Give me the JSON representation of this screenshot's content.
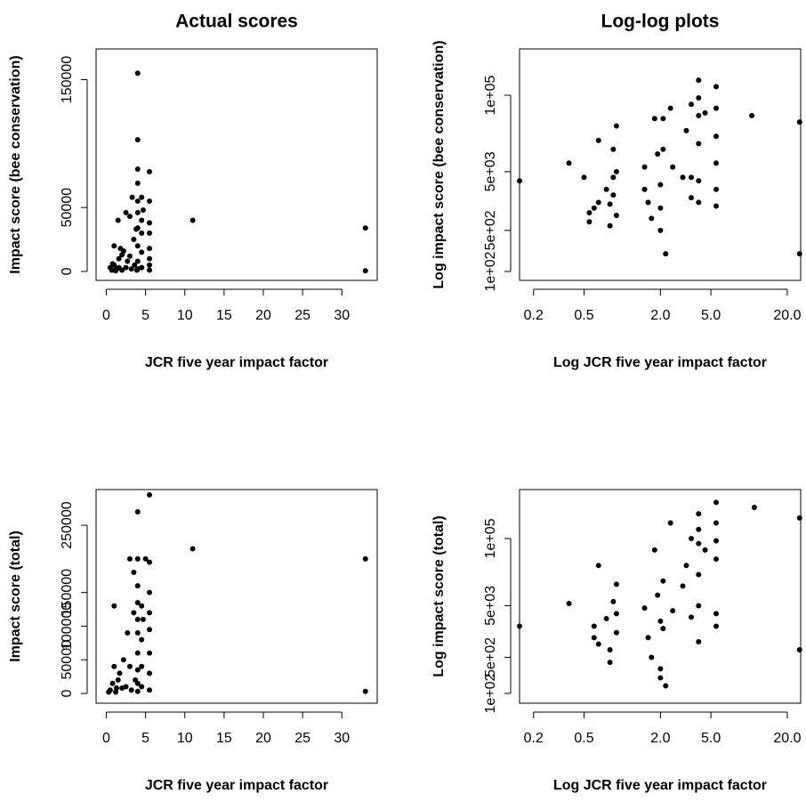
{
  "chart_data": [
    {
      "type": "scatter",
      "title": "Actual scores",
      "x_label": "JCR five year impact factor",
      "y_label": "Impact score (bee conservation)",
      "color": "#000000",
      "xlim": [
        -1.3,
        34.5
      ],
      "ylim": [
        -7000,
        174000
      ],
      "xticks": [
        0,
        5,
        10,
        15,
        20,
        25,
        30
      ],
      "yticks": [
        0,
        50000,
        150000
      ],
      "x": [
        0.5,
        0.7,
        0.8,
        1,
        1.2,
        1.3,
        1.5,
        1.6,
        1.8,
        2,
        2.2,
        2.5,
        2.5,
        2.7,
        3,
        3,
        3.2,
        3.3,
        3.5,
        3.6,
        3.8,
        3.9,
        4,
        4,
        4,
        4,
        4,
        4,
        4,
        4,
        4,
        4,
        4.5,
        4.5,
        4.5,
        4.5,
        4.5,
        4.7,
        5.5,
        5.5,
        5.5,
        5.5,
        5.5,
        5.5,
        5.5,
        5.5,
        11,
        33,
        33,
        2,
        1,
        1.6
      ],
      "y": [
        3000,
        1000,
        6000,
        20000,
        500,
        2000,
        40000,
        10000,
        18000,
        1000,
        16000,
        46000,
        3000,
        8000,
        43000,
        12000,
        2000,
        58000,
        25000,
        5000,
        33000,
        1000,
        155000,
        103000,
        80000,
        69000,
        55000,
        46000,
        34000,
        20000,
        8000,
        2000,
        58000,
        40000,
        30000,
        15000,
        3000,
        48000,
        78000,
        55000,
        38000,
        30000,
        18000,
        10000,
        5000,
        1000,
        40000,
        34000,
        500,
        13000,
        5000,
        3000
      ]
    },
    {
      "type": "scatter",
      "title": "Log-log plots",
      "x_label": "Log JCR five year impact factor",
      "y_label": "Log impact score (bee conservation)",
      "color": "#000000",
      "log_x": true,
      "log_y": true,
      "xlim": [
        0.155,
        25.5
      ],
      "ylim": [
        70.5,
        614000
      ],
      "xticks": [
        0.2,
        0.5,
        {
          "value": 2,
          "label": "2.0"
        },
        {
          "value": 5,
          "label": "5.0"
        },
        {
          "value": 20,
          "label": "20.0"
        }
      ],
      "yticks": [
        {
          "value": 100,
          "label": "1e+02"
        },
        {
          "value": 500,
          "label": "5e+02"
        },
        {
          "value": 5000,
          "label": "5e+03"
        },
        {
          "value": 100000,
          "label": "1e+05"
        }
      ],
      "x": [
        0.155,
        0.38,
        0.5,
        0.55,
        0.55,
        0.6,
        0.65,
        0.65,
        0.75,
        0.8,
        0.8,
        0.85,
        0.85,
        0.85,
        0.9,
        0.9,
        0.9,
        1.5,
        1.5,
        1.6,
        1.7,
        1.8,
        1.9,
        2,
        2,
        2,
        2.1,
        2.1,
        2.2,
        2.4,
        2.5,
        3,
        3.2,
        3.5,
        3.5,
        3.5,
        4,
        4,
        4,
        4,
        4,
        4,
        4.5,
        5.5,
        5.5,
        5.5,
        5.5,
        5.5,
        5.5,
        10.5,
        25,
        25
      ],
      "y": [
        3500,
        7000,
        4000,
        1000,
        700,
        1200,
        17000,
        1500,
        2500,
        1400,
        600,
        12000,
        4000,
        2000,
        30000,
        5000,
        900,
        6000,
        2500,
        1500,
        800,
        40000,
        10000,
        3000,
        1200,
        500,
        40000,
        12000,
        200,
        60000,
        6000,
        4000,
        25000,
        70000,
        4000,
        1800,
        180000,
        90000,
        45000,
        15000,
        3500,
        1500,
        50000,
        140000,
        60000,
        20000,
        7000,
        2500,
        1300,
        45000,
        35000,
        200
      ]
    },
    {
      "type": "scatter",
      "x_label": "JCR five year impact factor",
      "y_label": "Impact score (total)",
      "color": "#000000",
      "xlim": [
        -1.3,
        34.5
      ],
      "ylim": [
        -14500,
        303000
      ],
      "xticks": [
        0,
        5,
        10,
        15,
        20,
        25,
        30
      ],
      "yticks": [
        0,
        50000,
        100000,
        150000,
        250000
      ],
      "x": [
        0.5,
        0.8,
        1,
        1,
        1.2,
        1.5,
        1.7,
        2,
        2.2,
        2.5,
        2.7,
        3,
        3,
        3.2,
        3.5,
        3.5,
        3.7,
        4,
        4,
        4,
        4,
        4,
        4,
        4,
        4,
        4,
        4,
        4.5,
        4.5,
        4.5,
        4.5,
        4.7,
        5,
        5.5,
        5.5,
        5.5,
        5.5,
        5.5,
        5.5,
        5.5,
        5.5,
        11,
        33,
        33,
        0.3,
        1.3
      ],
      "y": [
        5000,
        15000,
        40000,
        130000,
        2000,
        20000,
        30000,
        8000,
        50000,
        10000,
        90000,
        200000,
        40000,
        5000,
        180000,
        120000,
        20000,
        270000,
        200000,
        160000,
        135000,
        110000,
        90000,
        60000,
        35000,
        15000,
        3000,
        130000,
        80000,
        40000,
        10000,
        110000,
        200000,
        295000,
        195000,
        150000,
        120000,
        95000,
        60000,
        30000,
        5000,
        215000,
        200000,
        3000,
        2000,
        8000
      ]
    },
    {
      "type": "scatter",
      "x_label": "Log JCR five year impact factor",
      "y_label": "Log impact score (total)",
      "color": "#000000",
      "log_x": true,
      "log_y": true,
      "xlim": [
        0.155,
        25.5
      ],
      "ylim": [
        64.6,
        887000
      ],
      "xticks": [
        0.2,
        0.5,
        {
          "value": 2,
          "label": "2.0"
        },
        {
          "value": 5,
          "label": "5.0"
        },
        {
          "value": 20,
          "label": "20.0"
        }
      ],
      "yticks": [
        {
          "value": 100,
          "label": "1e+02"
        },
        {
          "value": 500,
          "label": "5e+02"
        },
        {
          "value": 5000,
          "label": "5e+03"
        },
        {
          "value": 100000,
          "label": "1e+05"
        }
      ],
      "x": [
        0.155,
        0.38,
        0.6,
        0.6,
        0.65,
        0.65,
        0.75,
        0.8,
        0.8,
        0.85,
        0.9,
        0.9,
        0.9,
        1.5,
        1.6,
        1.7,
        1.8,
        1.9,
        2,
        2,
        2,
        2.1,
        2.1,
        2.2,
        2.4,
        2.5,
        3,
        3.2,
        3.5,
        3.5,
        4,
        4,
        4,
        4,
        4,
        4,
        4.5,
        5.5,
        5.5,
        5.5,
        5.5,
        5.5,
        5.5,
        11,
        25,
        25
      ],
      "y": [
        2000,
        5500,
        2000,
        1200,
        900,
        30000,
        2800,
        700,
        400,
        6000,
        13000,
        3500,
        1500,
        4500,
        1200,
        500,
        60000,
        8000,
        2500,
        300,
        200,
        15000,
        1800,
        140,
        200000,
        4000,
        12000,
        30000,
        100000,
        3000,
        300000,
        150000,
        80000,
        20000,
        5000,
        1000,
        60000,
        500000,
        200000,
        90000,
        40000,
        3500,
        2000,
        400000,
        250000,
        700
      ]
    }
  ]
}
